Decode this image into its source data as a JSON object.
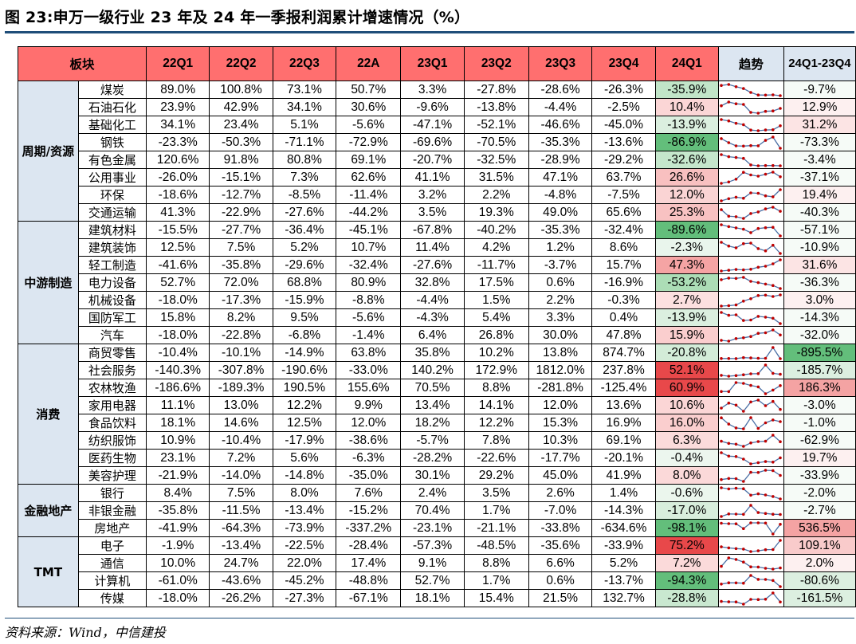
{
  "title": "图 23:申万一级行业 23 年及 24 年一季报利润累计增速情况（%）",
  "source": "资料来源：Wind，中信建投",
  "chart_data": {
    "type": "table",
    "columns": [
      "板块",
      "22Q1",
      "22Q2",
      "22Q3",
      "22A",
      "23Q1",
      "23Q2",
      "23Q3",
      "23Q4",
      "24Q1",
      "趋势",
      "24Q1-23Q4"
    ],
    "groups": [
      {
        "name": "周期/资源",
        "rows": [
          {
            "industry": "煤炭",
            "values": [
              89.0,
              100.8,
              73.1,
              50.7,
              3.3,
              -27.8,
              -28.6,
              -26.3,
              -35.9
            ],
            "diff": -9.7
          },
          {
            "industry": "石油石化",
            "values": [
              23.9,
              42.9,
              34.1,
              30.6,
              -9.6,
              -13.8,
              -4.4,
              -2.5,
              10.4
            ],
            "diff": 12.9
          },
          {
            "industry": "基础化工",
            "values": [
              34.1,
              23.4,
              5.1,
              -5.6,
              -47.1,
              -52.1,
              -46.6,
              -45.0,
              -13.9
            ],
            "diff": 31.2
          },
          {
            "industry": "钢铁",
            "values": [
              -23.3,
              -50.3,
              -71.1,
              -72.9,
              -69.6,
              -70.5,
              -35.3,
              -13.6,
              -86.9
            ],
            "diff": -73.3
          },
          {
            "industry": "有色金属",
            "values": [
              120.6,
              91.8,
              80.8,
              69.1,
              -20.7,
              -32.5,
              -28.9,
              -29.2,
              -32.6
            ],
            "diff": -3.4
          },
          {
            "industry": "公用事业",
            "values": [
              -26.0,
              -15.1,
              7.3,
              62.6,
              41.1,
              31.5,
              47.1,
              63.7,
              26.6
            ],
            "diff": -37.1
          },
          {
            "industry": "环保",
            "values": [
              -18.6,
              -12.7,
              -8.5,
              -11.4,
              3.2,
              2.2,
              -4.8,
              -7.5,
              12.0
            ],
            "diff": 19.4
          },
          {
            "industry": "交通运输",
            "values": [
              41.3,
              -22.9,
              -27.6,
              -44.2,
              3.5,
              19.3,
              49.0,
              65.6,
              25.3
            ],
            "diff": -40.3
          }
        ]
      },
      {
        "name": "中游制造",
        "rows": [
          {
            "industry": "建筑材料",
            "values": [
              -15.5,
              -27.7,
              -36.4,
              -45.1,
              -67.8,
              -40.2,
              -35.3,
              -32.4,
              -89.6
            ],
            "diff": -57.1
          },
          {
            "industry": "建筑装饰",
            "values": [
              12.5,
              7.5,
              5.2,
              10.7,
              11.4,
              4.2,
              1.2,
              8.6,
              -2.3
            ],
            "diff": -10.9
          },
          {
            "industry": "轻工制造",
            "values": [
              -41.6,
              -35.8,
              -29.6,
              -32.4,
              -27.6,
              -11.7,
              -3.7,
              15.7,
              47.3
            ],
            "diff": 31.6
          },
          {
            "industry": "电力设备",
            "values": [
              52.7,
              72.0,
              68.8,
              80.9,
              32.8,
              17.5,
              0.6,
              -16.9,
              -53.2
            ],
            "diff": -36.3
          },
          {
            "industry": "机械设备",
            "values": [
              -18.0,
              -17.3,
              -15.9,
              -8.8,
              -4.4,
              1.5,
              2.2,
              -0.3,
              2.7
            ],
            "diff": 3.0
          },
          {
            "industry": "国防军工",
            "values": [
              15.8,
              8.2,
              9.5,
              -5.6,
              -4.3,
              5.4,
              3.3,
              0.4,
              -13.9
            ],
            "diff": -14.3
          },
          {
            "industry": "汽车",
            "values": [
              -18.0,
              -22.8,
              -6.8,
              -1.4,
              6.4,
              26.8,
              30.0,
              47.8,
              15.9
            ],
            "diff": -32.0
          }
        ]
      },
      {
        "name": "消费",
        "rows": [
          {
            "industry": "商贸零售",
            "values": [
              -10.4,
              -10.1,
              -14.9,
              63.8,
              35.8,
              10.2,
              13.8,
              874.7,
              -20.8
            ],
            "diff": -895.5
          },
          {
            "industry": "社会服务",
            "values": [
              -140.3,
              -307.8,
              -190.6,
              -33.0,
              140.2,
              172.9,
              1812.0,
              237.8,
              52.1
            ],
            "diff": -185.7
          },
          {
            "industry": "农林牧渔",
            "values": [
              -186.6,
              -189.3,
              190.5,
              155.6,
              70.5,
              8.8,
              -281.8,
              -125.4,
              60.9
            ],
            "diff": 186.3
          },
          {
            "industry": "家用电器",
            "values": [
              11.1,
              13.0,
              12.2,
              9.9,
              13.4,
              14.1,
              12.0,
              13.6,
              10.6
            ],
            "diff": -3.0
          },
          {
            "industry": "食品饮料",
            "values": [
              18.1,
              14.6,
              12.5,
              12.0,
              18.2,
              12.2,
              15.3,
              16.9,
              16.0
            ],
            "diff": -1.0
          },
          {
            "industry": "纺织服饰",
            "values": [
              10.9,
              -10.4,
              -17.9,
              -38.6,
              -5.7,
              7.8,
              10.3,
              69.1,
              6.3
            ],
            "diff": -62.9
          },
          {
            "industry": "医药生物",
            "values": [
              23.1,
              7.2,
              5.6,
              -6.3,
              -28.2,
              -22.6,
              -17.7,
              -20.1,
              -0.4
            ],
            "diff": 19.7
          },
          {
            "industry": "美容护理",
            "values": [
              -21.9,
              -14.0,
              -14.8,
              -35.0,
              30.1,
              29.2,
              45.0,
              41.9,
              8.0
            ],
            "diff": -33.9
          }
        ]
      },
      {
        "name": "金融地产",
        "rows": [
          {
            "industry": "银行",
            "values": [
              8.4,
              7.5,
              8.0,
              7.6,
              2.4,
              3.5,
              2.6,
              1.4,
              -0.6
            ],
            "diff": -2.0
          },
          {
            "industry": "非银金融",
            "values": [
              -35.8,
              -11.5,
              -13.4,
              -15.2,
              70.4,
              1.7,
              -7.0,
              -14.3,
              -17.0
            ],
            "diff": -2.7
          },
          {
            "industry": "房地产",
            "values": [
              -41.9,
              -64.3,
              -73.9,
              -337.2,
              -23.1,
              -21.1,
              -33.8,
              -634.6,
              -98.1
            ],
            "diff": 536.5
          }
        ]
      },
      {
        "name": "TMT",
        "rows": [
          {
            "industry": "电子",
            "values": [
              -1.9,
              -13.4,
              -22.5,
              -28.4,
              -57.3,
              -48.5,
              -35.6,
              -33.9,
              75.2
            ],
            "diff": 109.1
          },
          {
            "industry": "通信",
            "values": [
              10.0,
              24.7,
              22.0,
              17.4,
              9.1,
              8.8,
              6.6,
              5.2,
              7.2
            ],
            "diff": 2.0
          },
          {
            "industry": "计算机",
            "values": [
              -61.0,
              -43.6,
              -45.2,
              -48.8,
              52.7,
              1.7,
              0.6,
              -13.7,
              -94.3
            ],
            "diff": -80.6
          },
          {
            "industry": "传媒",
            "values": [
              -18.0,
              -26.2,
              -27.3,
              -67.1,
              18.1,
              15.4,
              21.5,
              132.7,
              -28.8
            ],
            "diff": -161.5
          }
        ]
      }
    ]
  }
}
